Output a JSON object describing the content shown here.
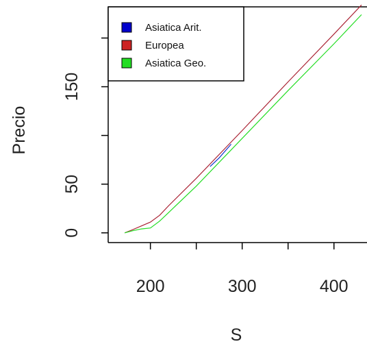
{
  "chart_data": {
    "type": "line",
    "xlabel": "S",
    "ylabel": "Precio",
    "xlim": [
      154,
      436
    ],
    "ylim": [
      -10,
      232
    ],
    "x_ticks": [
      200,
      250,
      300,
      350,
      400
    ],
    "x_tick_labels": [
      "200",
      "",
      "300",
      "",
      "400"
    ],
    "y_ticks": [
      0,
      50,
      100,
      150,
      200
    ],
    "y_tick_labels": [
      "0",
      "50",
      "",
      "150",
      ""
    ],
    "legend": {
      "position": "top-left",
      "entries": [
        {
          "label": "Asiatica Arit.",
          "color": "#0000cc"
        },
        {
          "label": "Europea",
          "color": "#cc2222"
        },
        {
          "label": "Asiatica Geo.",
          "color": "#22dd22"
        }
      ]
    },
    "series": [
      {
        "name": "Europea",
        "color": "#aa2233",
        "x": [
          172,
          180,
          190,
          200,
          210,
          220,
          250,
          300,
          350,
          400,
          430
        ],
        "y": [
          0,
          3,
          7,
          11,
          18,
          28,
          56,
          105,
          155,
          204,
          234
        ]
      },
      {
        "name": "Asiatica Geo.",
        "color": "#22dd22",
        "x": [
          172,
          180,
          190,
          200,
          210,
          220,
          250,
          300,
          350,
          400,
          430
        ],
        "y": [
          0,
          2,
          4,
          5,
          12,
          21,
          48,
          97,
          146,
          194,
          224
        ]
      },
      {
        "name": "Asiatica Arit.",
        "color": "#1133cc",
        "x": [
          265,
          275,
          288
        ],
        "y": [
          68,
          77,
          91
        ]
      }
    ]
  }
}
